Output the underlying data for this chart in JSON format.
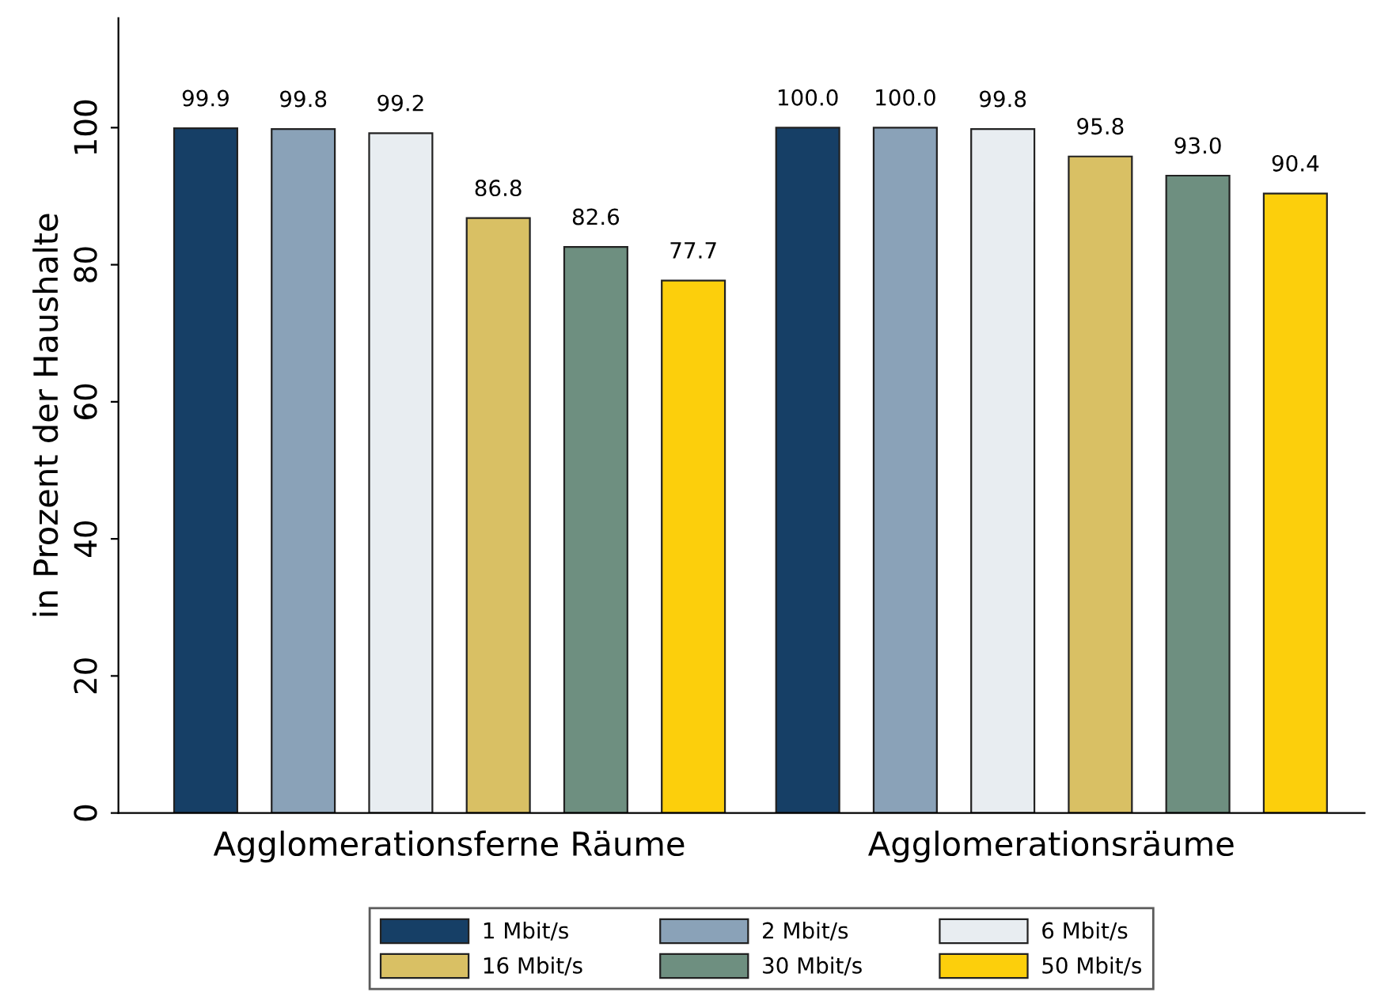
{
  "chart_data": {
    "type": "bar",
    "ylabel": "in Prozent der Haushalte",
    "categories": [
      "Agglomerationsferne Räume",
      "Agglomerationsräume"
    ],
    "series": [
      {
        "name": "1 Mbit/s",
        "color": "#163f66",
        "values": [
          99.9,
          100.0
        ],
        "value_labels": [
          "99.9",
          "100.0"
        ]
      },
      {
        "name": "2 Mbit/s",
        "color": "#8aa2b8",
        "values": [
          99.8,
          100.0
        ],
        "value_labels": [
          "99.8",
          "100.0"
        ]
      },
      {
        "name": "6 Mbit/s",
        "color": "#e8edf1",
        "values": [
          99.2,
          99.8
        ],
        "value_labels": [
          "99.2",
          "99.8"
        ]
      },
      {
        "name": "16 Mbit/s",
        "color": "#d9c064",
        "values": [
          86.8,
          95.8
        ],
        "value_labels": [
          "86.8",
          "95.8"
        ]
      },
      {
        "name": "30 Mbit/s",
        "color": "#6e8f80",
        "values": [
          82.6,
          93.0
        ],
        "value_labels": [
          "82.6",
          "93.0"
        ]
      },
      {
        "name": "50 Mbit/s",
        "color": "#fccf0c",
        "values": [
          77.7,
          90.4
        ],
        "value_labels": [
          "77.7",
          "90.4"
        ]
      }
    ],
    "ylim": [
      0,
      116
    ],
    "yticks": [
      0,
      20,
      40,
      60,
      80,
      100
    ],
    "grid": false,
    "legend": "bottom"
  }
}
